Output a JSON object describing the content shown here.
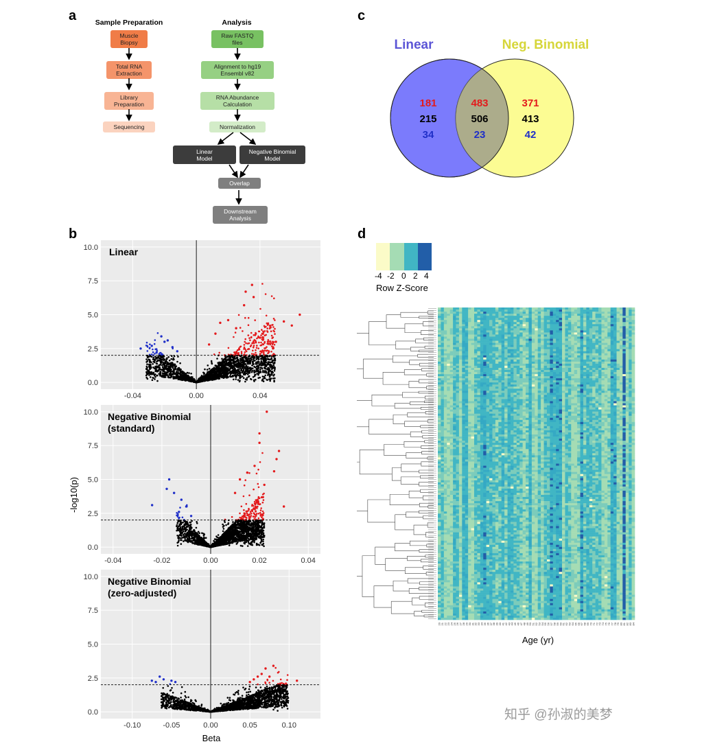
{
  "panels": {
    "a": "a",
    "b": "b",
    "c": "c",
    "d": "d"
  },
  "panel_a": {
    "sample_prep_title": "Sample Preparation",
    "analysis_title": "Analysis",
    "sample_steps": [
      "Muscle\nBiopsy",
      "Total RNA\nExtraction",
      "Library\nPreparation",
      "Sequencing"
    ],
    "analysis_steps": [
      "Raw FASTQ\nfiles",
      "Alignment to hg19\nEnsembl v82",
      "RNA Abundance\nCalculation",
      "Normalization"
    ],
    "linear_model": "Linear\nModel",
    "nb_model": "Negative Binomial\nModel",
    "overlap": "Overlap",
    "downstream": "Downstream\nAnalysis",
    "colors": {
      "sample": [
        "#f07c47",
        "#f4946a",
        "#f8b494",
        "#fbd3bf"
      ],
      "analysis": [
        "#78c162",
        "#96d083",
        "#b6dfa6",
        "#d3ecc8"
      ],
      "model": "#3c3c3c",
      "grey": "#7f7f7f"
    }
  },
  "panel_b": {
    "ylabel": "-log10(p)",
    "xlabel": "Beta",
    "threshold": 2.0,
    "colors": {
      "up": "#e31a1c",
      "down": "#1f2fc8",
      "ns": "#000000",
      "bg": "#ebebeb"
    },
    "plots": [
      {
        "title": "Linear",
        "xticks": [
          "-0.04",
          "0.00",
          "0.04"
        ],
        "xtick_values": [
          -0.04,
          0.0,
          0.04
        ],
        "xlim": [
          -0.06,
          0.078
        ],
        "yticks": [
          "0.0",
          "2.5",
          "5.0",
          "7.5",
          "10.0"
        ],
        "ylim": [
          -0.5,
          10.5
        ]
      },
      {
        "title": "Negative Binomial\n(standard)",
        "xticks": [
          "-0.04",
          "-0.02",
          "0.00",
          "0.02",
          "0.04"
        ],
        "xtick_values": [
          -0.04,
          -0.02,
          0.0,
          0.02,
          0.04
        ],
        "xlim": [
          -0.045,
          0.045
        ],
        "yticks": [
          "0.0",
          "2.5",
          "5.0",
          "7.5",
          "10.0"
        ],
        "ylim": [
          -0.5,
          10.5
        ]
      },
      {
        "title": "Negative Binomial\n(zero-adjusted)",
        "xticks": [
          "-0.10",
          "-0.05",
          "0.00",
          "0.05",
          "0.10"
        ],
        "xtick_values": [
          -0.1,
          -0.05,
          0.0,
          0.05,
          0.1
        ],
        "xlim": [
          -0.14,
          0.14
        ],
        "yticks": [
          "0.0",
          "2.5",
          "5.0",
          "7.5",
          "10.0"
        ],
        "ylim": [
          -0.5,
          10.5
        ]
      }
    ]
  },
  "panel_c": {
    "left_label": "Linear",
    "right_label": "Neg. Binomial",
    "left_color": "#7b7bfc",
    "right_color": "#fbfb7b",
    "left_only": [
      "181",
      "215",
      "34"
    ],
    "both": [
      "483",
      "506",
      "23"
    ],
    "right_only": [
      "371",
      "413",
      "42"
    ],
    "number_colors": [
      "#e31a1c",
      "#000000",
      "#1f2fc8"
    ]
  },
  "panel_d": {
    "legend_ticks": [
      "-4",
      "-2",
      "0",
      "2",
      "4"
    ],
    "legend_title": "Row Z-Score",
    "legend_colors": [
      "#fbfbc8",
      "#a5dcb4",
      "#41b6c4",
      "#225ea8"
    ],
    "xlabel": "Age (yr)",
    "ages": [
      "20",
      "21",
      "22",
      "23",
      "24",
      "25",
      "26",
      "27",
      "28",
      "29",
      "30",
      "31",
      "32",
      "33",
      "34",
      "35",
      "36",
      "37",
      "38",
      "39",
      "40",
      "41",
      "42",
      "43",
      "44",
      "45",
      "46",
      "47",
      "48",
      "49",
      "50",
      "51",
      "52",
      "53",
      "54",
      "55",
      "56",
      "57",
      "58",
      "59",
      "60",
      "61",
      "62",
      "63",
      "64",
      "65",
      "66",
      "67",
      "68",
      "69",
      "70",
      "71",
      "72",
      "73",
      "74",
      "75",
      "76",
      "77",
      "78",
      "79",
      "80",
      "81",
      "82",
      "83",
      "84"
    ]
  },
  "watermark": "知乎 @孙淑的美梦",
  "chart_data": [
    {
      "type": "scatter",
      "title": "Linear",
      "xlabel": "Beta",
      "ylabel": "-log10(p)",
      "xlim": [
        -0.06,
        0.078
      ],
      "ylim": [
        -0.5,
        10.5
      ],
      "series": [
        {
          "name": "up-regulated",
          "color": "#e31a1c",
          "points": [
            [
              0.035,
              7.2
            ],
            [
              0.031,
              6.7
            ],
            [
              0.065,
              5.0
            ],
            [
              0.03,
              5.7
            ],
            [
              0.036,
              6.3
            ],
            [
              0.06,
              4.2
            ],
            [
              0.055,
              4.5
            ],
            [
              0.045,
              4.3
            ],
            [
              0.02,
              4.6
            ],
            [
              0.025,
              4.0
            ],
            [
              0.015,
              4.4
            ],
            [
              0.012,
              3.6
            ],
            [
              0.04,
              3.3
            ],
            [
              0.05,
              3.0
            ],
            [
              0.008,
              2.8
            ]
          ]
        },
        {
          "name": "down-regulated",
          "color": "#1f2fc8",
          "points": [
            [
              -0.022,
              3.4
            ],
            [
              -0.02,
              3.0
            ],
            [
              -0.018,
              3.1
            ],
            [
              -0.028,
              2.7
            ],
            [
              -0.035,
              2.5
            ],
            [
              -0.015,
              2.6
            ],
            [
              -0.012,
              2.3
            ],
            [
              -0.025,
              2.2
            ]
          ]
        }
      ]
    },
    {
      "type": "scatter",
      "title": "Negative Binomial (standard)",
      "xlabel": "Beta",
      "ylabel": "-log10(p)",
      "xlim": [
        -0.045,
        0.045
      ],
      "ylim": [
        -0.5,
        10.5
      ],
      "series": [
        {
          "name": "up-regulated",
          "color": "#e31a1c",
          "points": [
            [
              0.023,
              10.0
            ],
            [
              0.02,
              8.4
            ],
            [
              0.02,
              7.7
            ],
            [
              0.028,
              7.1
            ],
            [
              0.027,
              6.5
            ],
            [
              0.026,
              5.6
            ],
            [
              0.018,
              6.0
            ],
            [
              0.015,
              5.5
            ],
            [
              0.012,
              5.0
            ],
            [
              0.022,
              4.6
            ],
            [
              0.03,
              3.0
            ],
            [
              0.01,
              4.0
            ]
          ]
        },
        {
          "name": "down-regulated",
          "color": "#1f2fc8",
          "points": [
            [
              -0.017,
              5.0
            ],
            [
              -0.018,
              4.3
            ],
            [
              -0.015,
              4.0
            ],
            [
              -0.024,
              3.1
            ],
            [
              -0.012,
              3.5
            ],
            [
              -0.01,
              3.0
            ],
            [
              -0.013,
              2.6
            ],
            [
              -0.008,
              2.3
            ]
          ]
        }
      ]
    },
    {
      "type": "scatter",
      "title": "Negative Binomial (zero-adjusted)",
      "xlabel": "Beta",
      "ylabel": "-log10(p)",
      "xlim": [
        -0.14,
        0.14
      ],
      "ylim": [
        -0.5,
        10.5
      ],
      "series": [
        {
          "name": "up-regulated",
          "color": "#e31a1c",
          "points": [
            [
              0.08,
              3.4
            ],
            [
              0.07,
              3.2
            ],
            [
              0.065,
              2.8
            ],
            [
              0.06,
              2.6
            ],
            [
              0.055,
              2.4
            ],
            [
              0.05,
              2.2
            ],
            [
              0.11,
              2.3
            ],
            [
              0.075,
              2.6
            ]
          ]
        },
        {
          "name": "down-regulated",
          "color": "#1f2fc8",
          "points": [
            [
              -0.065,
              2.6
            ],
            [
              -0.06,
              2.4
            ],
            [
              -0.07,
              2.2
            ],
            [
              -0.075,
              2.3
            ],
            [
              -0.05,
              2.3
            ],
            [
              -0.045,
              2.2
            ]
          ]
        }
      ]
    },
    {
      "type": "table",
      "title": "Venn diagram (Linear vs Neg. Binomial)",
      "columns": [
        "Linear only",
        "Overlap",
        "Neg. Binomial only"
      ],
      "rows": [
        [
          181,
          483,
          371
        ],
        [
          215,
          506,
          413
        ],
        [
          34,
          23,
          42
        ]
      ]
    },
    {
      "type": "heatmap",
      "title": "Row Z-Score heatmap",
      "xlabel": "Age (yr)",
      "zlim": [
        -4,
        4
      ]
    }
  ]
}
